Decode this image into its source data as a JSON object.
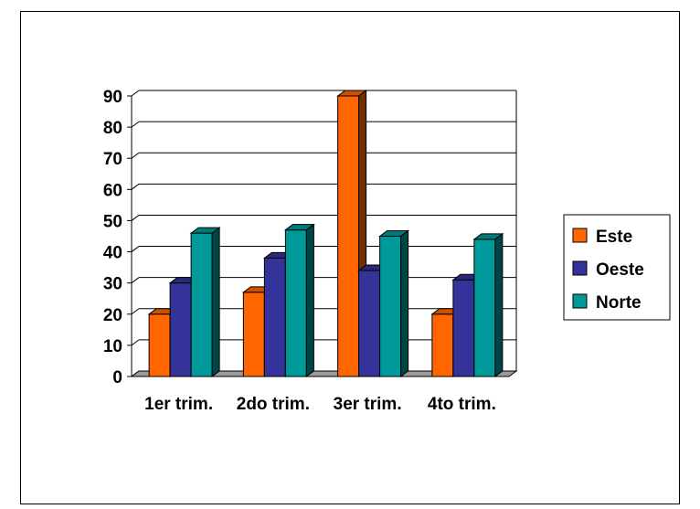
{
  "chart_data": {
    "type": "bar",
    "style": "3d-clustered-column",
    "categories": [
      "1er trim.",
      "2do trim.",
      "3er trim.",
      "4to trim."
    ],
    "series": [
      {
        "name": "Este",
        "values": [
          20,
          27,
          90,
          20
        ],
        "color": "#ff6600"
      },
      {
        "name": "Oeste",
        "values": [
          30,
          38,
          34,
          31
        ],
        "color": "#333399"
      },
      {
        "name": "Norte",
        "values": [
          46,
          47,
          45,
          44
        ],
        "color": "#009999"
      }
    ],
    "title": "",
    "xlabel": "",
    "ylabel": "",
    "ylim": [
      0,
      90
    ],
    "yticks": [
      0,
      10,
      20,
      30,
      40,
      50,
      60,
      70,
      80,
      90
    ],
    "grid": true,
    "legend": "right"
  }
}
